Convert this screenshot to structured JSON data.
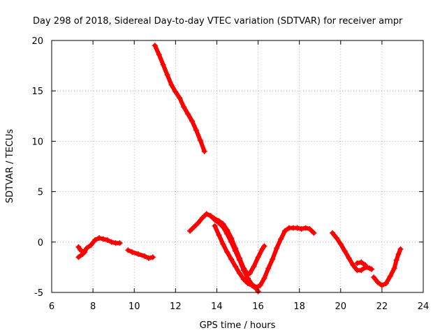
{
  "chart_data": {
    "type": "scatter",
    "title": "Day 298 of 2018, Sidereal Day-to-day VTEC variation (SDTVAR) for receiver ampr",
    "xlabel": "GPS time / hours",
    "ylabel": "SDTVAR / TECUs",
    "xlim": [
      6,
      24
    ],
    "ylim": [
      -5,
      20
    ],
    "xticks": [
      6,
      8,
      10,
      12,
      14,
      16,
      18,
      20,
      22,
      24
    ],
    "yticks": [
      -5,
      0,
      5,
      10,
      15,
      20
    ],
    "grid": true,
    "color": "#ff0000",
    "series": [
      {
        "name": "arc-1",
        "points": [
          [
            7.3,
            -1.5
          ],
          [
            7.5,
            -1.2
          ],
          [
            7.7,
            -0.6
          ],
          [
            7.9,
            -0.3
          ],
          [
            8.1,
            0.2
          ],
          [
            8.3,
            0.4
          ],
          [
            8.5,
            0.3
          ],
          [
            8.7,
            0.2
          ],
          [
            8.9,
            0.0
          ],
          [
            9.1,
            -0.1
          ],
          [
            9.3,
            -0.1
          ]
        ]
      },
      {
        "name": "arc-1b",
        "points": [
          [
            7.3,
            -0.5
          ],
          [
            7.4,
            -0.8
          ],
          [
            7.6,
            -1.0
          ]
        ]
      },
      {
        "name": "arc-2",
        "points": [
          [
            9.7,
            -0.8
          ],
          [
            9.9,
            -1.0
          ],
          [
            10.2,
            -1.2
          ],
          [
            10.5,
            -1.4
          ],
          [
            10.7,
            -1.6
          ],
          [
            10.9,
            -1.5
          ]
        ]
      },
      {
        "name": "arc-3",
        "points": [
          [
            11.0,
            19.5
          ],
          [
            11.2,
            18.6
          ],
          [
            11.4,
            17.6
          ],
          [
            11.6,
            16.6
          ],
          [
            11.8,
            15.6
          ],
          [
            12.0,
            14.9
          ],
          [
            12.2,
            14.3
          ],
          [
            12.4,
            13.4
          ],
          [
            12.6,
            12.7
          ],
          [
            12.8,
            12.0
          ],
          [
            13.0,
            11.1
          ],
          [
            13.2,
            10.1
          ],
          [
            13.4,
            9.0
          ]
        ]
      },
      {
        "name": "arc-4",
        "points": [
          [
            12.7,
            1.1
          ],
          [
            12.9,
            1.5
          ],
          [
            13.1,
            1.9
          ],
          [
            13.3,
            2.4
          ],
          [
            13.5,
            2.8
          ],
          [
            13.7,
            2.6
          ],
          [
            13.9,
            2.2
          ],
          [
            14.1,
            1.9
          ],
          [
            14.3,
            1.5
          ],
          [
            14.5,
            0.8
          ],
          [
            14.7,
            0.0
          ],
          [
            14.9,
            -0.9
          ],
          [
            15.1,
            -1.8
          ],
          [
            15.3,
            -2.8
          ],
          [
            15.5,
            -3.6
          ],
          [
            15.7,
            -4.2
          ],
          [
            15.9,
            -4.5
          ],
          [
            16.1,
            -4.3
          ],
          [
            16.3,
            -3.6
          ],
          [
            16.5,
            -2.6
          ],
          [
            16.7,
            -1.7
          ],
          [
            16.9,
            -0.6
          ],
          [
            17.1,
            0.3
          ],
          [
            17.3,
            1.1
          ],
          [
            17.5,
            1.4
          ],
          [
            17.7,
            1.4
          ],
          [
            17.9,
            1.4
          ],
          [
            18.1,
            1.3
          ],
          [
            18.3,
            1.4
          ],
          [
            18.5,
            1.3
          ],
          [
            18.7,
            0.9
          ]
        ]
      },
      {
        "name": "arc-5",
        "points": [
          [
            13.7,
            2.6
          ],
          [
            13.9,
            2.3
          ],
          [
            14.1,
            2.1
          ],
          [
            14.3,
            1.8
          ],
          [
            14.5,
            1.2
          ],
          [
            14.7,
            0.4
          ],
          [
            14.9,
            -0.6
          ],
          [
            15.1,
            -1.6
          ],
          [
            15.3,
            -2.6
          ],
          [
            15.5,
            -3.2
          ],
          [
            15.6,
            -3.1
          ],
          [
            15.8,
            -2.4
          ],
          [
            16.0,
            -1.5
          ],
          [
            16.2,
            -0.7
          ],
          [
            16.3,
            -0.4
          ]
        ]
      },
      {
        "name": "arc-6",
        "points": [
          [
            13.9,
            1.6
          ],
          [
            14.1,
            0.7
          ],
          [
            14.3,
            -0.2
          ],
          [
            14.5,
            -1.0
          ],
          [
            14.7,
            -1.7
          ],
          [
            14.9,
            -2.4
          ],
          [
            15.1,
            -3.1
          ],
          [
            15.3,
            -3.7
          ],
          [
            15.5,
            -4.1
          ],
          [
            15.7,
            -4.3
          ],
          [
            15.9,
            -4.6
          ],
          [
            16.0,
            -4.9
          ]
        ]
      },
      {
        "name": "arc-7",
        "points": [
          [
            19.6,
            0.9
          ],
          [
            19.8,
            0.4
          ],
          [
            20.0,
            -0.2
          ],
          [
            20.2,
            -0.9
          ],
          [
            20.4,
            -1.6
          ],
          [
            20.6,
            -2.3
          ],
          [
            20.8,
            -2.8
          ],
          [
            21.0,
            -2.8
          ],
          [
            21.2,
            -2.5
          ],
          [
            21.4,
            -2.6
          ],
          [
            21.5,
            -2.7
          ]
        ]
      },
      {
        "name": "arc-8",
        "points": [
          [
            20.8,
            -2.1
          ],
          [
            21.0,
            -2.0
          ],
          [
            21.2,
            -2.3
          ]
        ]
      },
      {
        "name": "arc-9",
        "points": [
          [
            21.6,
            -3.5
          ],
          [
            21.8,
            -4.0
          ],
          [
            22.0,
            -4.3
          ],
          [
            22.2,
            -4.1
          ],
          [
            22.4,
            -3.4
          ],
          [
            22.6,
            -2.6
          ],
          [
            22.7,
            -1.8
          ],
          [
            22.8,
            -1.2
          ],
          [
            22.9,
            -0.7
          ]
        ]
      }
    ]
  }
}
